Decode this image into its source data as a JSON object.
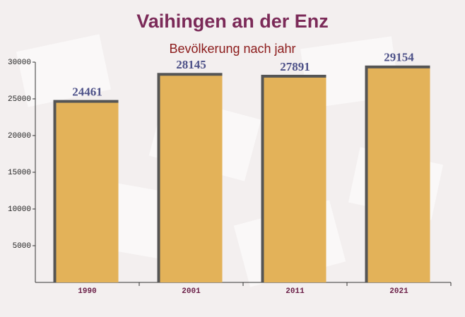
{
  "chart_data": {
    "type": "bar",
    "title": "Vaihingen an der Enz",
    "subtitle": "Bevölkerung nach jahr",
    "categories": [
      "1990",
      "2001",
      "2011",
      "2021"
    ],
    "values": [
      24461,
      28145,
      27891,
      29154
    ],
    "color": "#fdc35a",
    "ylim": [
      0,
      30000
    ],
    "yticks": [
      5000,
      10000,
      15000,
      20000,
      25000,
      30000
    ]
  }
}
